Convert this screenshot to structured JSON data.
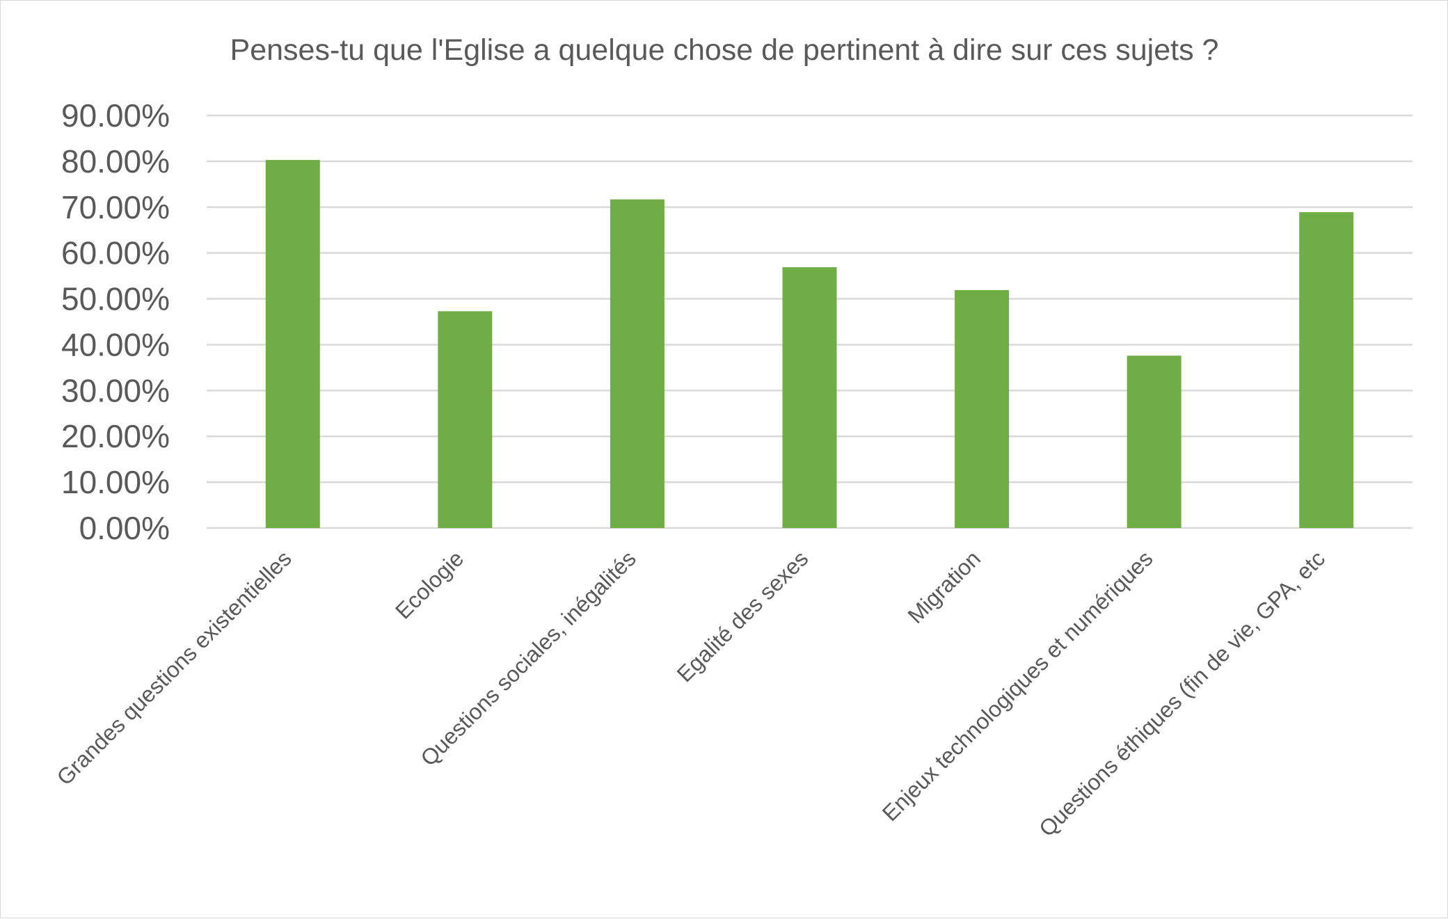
{
  "chart_data": {
    "type": "bar",
    "title": "Penses-tu que l'Eglise a quelque chose de pertinent à dire sur ces sujets ?",
    "xlabel": "",
    "ylabel": "",
    "categories": [
      "Grandes questions existentielles",
      "Ecologie",
      "Questions sociales, inégalités",
      "Egalité des sexes",
      "Migration",
      "Enjeux technologiques et numériques",
      "Questions éthiques (fin de vie, GPA, etc"
    ],
    "values": [
      80.3,
      47.3,
      71.7,
      56.9,
      51.9,
      37.6,
      68.9
    ],
    "value_format": "percent_2dp",
    "ylim": [
      0,
      90
    ],
    "yticks": [
      "0.00%",
      "10.00%",
      "20.00%",
      "30.00%",
      "40.00%",
      "50.00%",
      "60.00%",
      "70.00%",
      "80.00%",
      "90.00%"
    ],
    "grid": true,
    "legend": "none",
    "bar_color": "#70ad47"
  }
}
